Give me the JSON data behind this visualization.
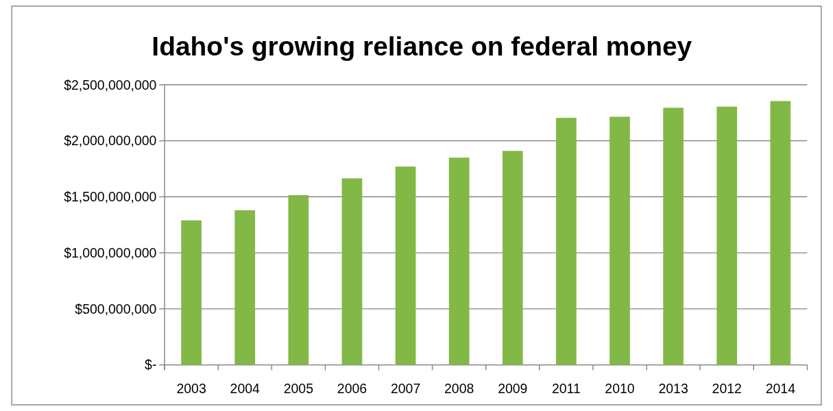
{
  "chart_data": {
    "type": "bar",
    "title": "Idaho's growing reliance on federal money",
    "categories": [
      "2003",
      "2004",
      "2005",
      "2006",
      "2007",
      "2008",
      "2009",
      "2011",
      "2010",
      "2013",
      "2012",
      "2014"
    ],
    "values": [
      1290000000,
      1380000000,
      1515000000,
      1665000000,
      1770000000,
      1850000000,
      1910000000,
      2205000000,
      2215000000,
      2295000000,
      2305000000,
      2355000000
    ],
    "color": "#82b846",
    "ylim": [
      0,
      2500000000
    ],
    "yticks": [
      {
        "value": 0,
        "label": "$-"
      },
      {
        "value": 500000000,
        "label": "$500,000,000"
      },
      {
        "value": 1000000000,
        "label": "$1,000,000,000"
      },
      {
        "value": 1500000000,
        "label": "$1,500,000,000"
      },
      {
        "value": 2000000000,
        "label": "$2,000,000,000"
      },
      {
        "value": 2500000000,
        "label": "$2,500,000,000"
      }
    ],
    "grid": "y"
  }
}
